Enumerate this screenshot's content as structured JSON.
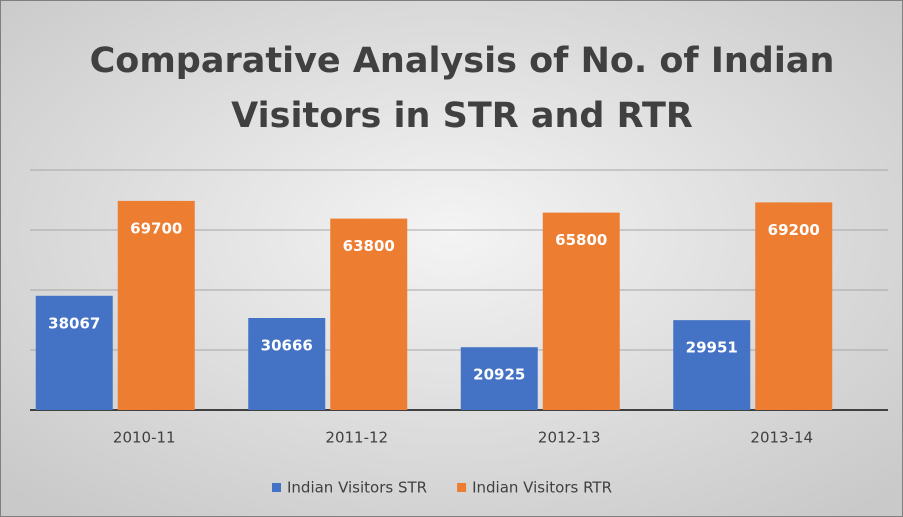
{
  "chart_data": {
    "type": "bar",
    "title": "Comparative Analysis of No. of Indian Visitors in STR and RTR",
    "categories": [
      "2010-11",
      "2011-12",
      "2012-13",
      "2013-14"
    ],
    "series": [
      {
        "name": "Indian Visitors STR",
        "color": "#4472c4",
        "values": [
          38067,
          30666,
          20925,
          29951
        ]
      },
      {
        "name": "Indian Visitors RTR",
        "color": "#ed7d31",
        "values": [
          69700,
          63800,
          65800,
          69200
        ]
      }
    ],
    "ylim": [
      0,
      80000
    ],
    "yticks": [
      0,
      20000,
      40000,
      60000,
      80000
    ],
    "grid": true,
    "legend": "bottom"
  }
}
